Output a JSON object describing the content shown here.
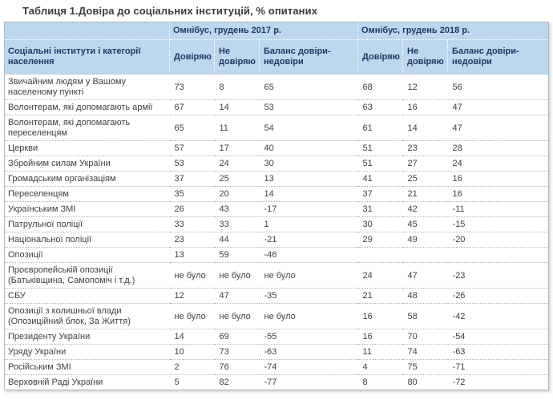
{
  "title": "Таблиця 1.Довіра до соціальних інституцій, % опитаних",
  "colors": {
    "header_bg": "#bdd7ee",
    "header_text": "#1f3864",
    "body_text": "#404040"
  },
  "table": {
    "row_header": "Соціальні інститути і категорії населення",
    "groups": [
      {
        "label": "Омнібус, грудень 2017 р."
      },
      {
        "label": "Омнібус, грудень 2018 р."
      }
    ],
    "sub_headers": [
      "Довіряю",
      "Не довіряю",
      "Баланс довіри-недовіри"
    ],
    "no_data_label": "не було",
    "rows": [
      {
        "name": "Звичайним людям у Вашому населеному пункті",
        "values": [
          "73",
          "8",
          "65",
          "68",
          "12",
          "56"
        ]
      },
      {
        "name": "Волонтерам, які допомагають армії",
        "values": [
          "67",
          "14",
          "53",
          "63",
          "16",
          "47"
        ]
      },
      {
        "name": "Волонтерам, які допомагають переселенцям",
        "values": [
          "65",
          "11",
          "54",
          "61",
          "14",
          "47"
        ]
      },
      {
        "name": "Церкви",
        "values": [
          "57",
          "17",
          "40",
          "51",
          "23",
          "28"
        ]
      },
      {
        "name": "Збройним силам України",
        "values": [
          "53",
          "24",
          "30",
          "51",
          "27",
          "24"
        ]
      },
      {
        "name": "Громадським організаціям",
        "values": [
          "37",
          "25",
          "13",
          "41",
          "25",
          "16"
        ]
      },
      {
        "name": "Переселенцям",
        "values": [
          "35",
          "20",
          "14",
          "37",
          "21",
          "16"
        ]
      },
      {
        "name": "Українським ЗМІ",
        "values": [
          "26",
          "43",
          "-17",
          "31",
          "42",
          "-11"
        ]
      },
      {
        "name": "Патрульної поліції",
        "values": [
          "33",
          "33",
          "1",
          "30",
          "45",
          "-15"
        ]
      },
      {
        "name": "Національної поліції",
        "values": [
          "23",
          "44",
          "-21",
          "29",
          "49",
          "-20"
        ]
      },
      {
        "name": "Опозиції",
        "values": [
          "13",
          "59",
          "-46",
          "",
          "",
          ""
        ]
      },
      {
        "name": "Проєвропейській опозиції (Батьківщина, Самопоміч і т.д.)",
        "values": [
          "не було",
          "не було",
          "не було",
          "24",
          "47",
          "-23"
        ]
      },
      {
        "name": "СБУ",
        "values": [
          "12",
          "47",
          "-35",
          "21",
          "48",
          "-26"
        ]
      },
      {
        "name": "Опозиції з колишньої влади (Опозиційний блок, За Життя)",
        "values": [
          "не було",
          "не було",
          "не було",
          "16",
          "58",
          "-42"
        ]
      },
      {
        "name": "Президенту України",
        "values": [
          "14",
          "69",
          "-55",
          "16",
          "70",
          "-54"
        ]
      },
      {
        "name": "Уряду України",
        "values": [
          "10",
          "73",
          "-63",
          "11",
          "74",
          "-63"
        ]
      },
      {
        "name": "Російським ЗМІ",
        "values": [
          "2",
          "76",
          "-74",
          "4",
          "75",
          "-71"
        ]
      },
      {
        "name": "Верховній Раді України",
        "values": [
          "5",
          "82",
          "-77",
          "8",
          "80",
          "-72"
        ]
      }
    ]
  }
}
